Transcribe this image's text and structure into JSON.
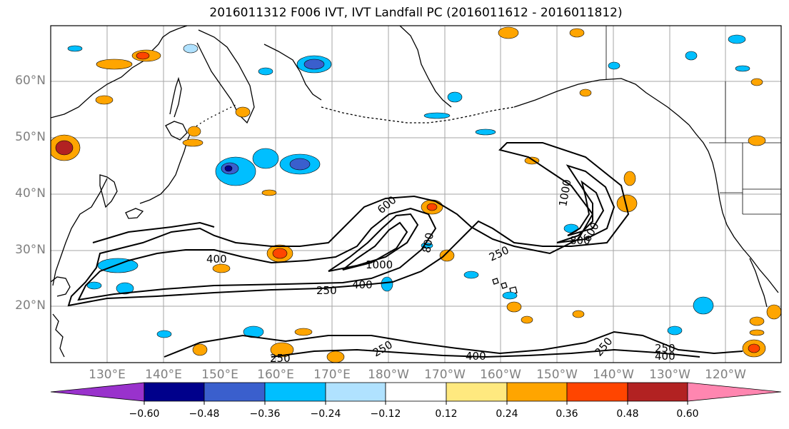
{
  "title": "2016011312 F006 IVT, IVT Landfall PC (2016011612 - 2016011812)",
  "lat_labels": [
    "60°N",
    "50°N",
    "40°N",
    "30°N",
    "20°N"
  ],
  "lon_labels": [
    "130°E",
    "140°E",
    "150°E",
    "160°E",
    "170°E",
    "180°W",
    "170°W",
    "160°W",
    "150°W",
    "140°W",
    "130°W",
    "120°W"
  ],
  "colorbar": {
    "ticks": [
      "−0.60",
      "−0.48",
      "−0.36",
      "−0.24",
      "−0.12",
      "0.12",
      "0.24",
      "0.36",
      "0.48",
      "0.60"
    ],
    "colors": [
      "#9932CC",
      "#00008B",
      "#3A5FCD",
      "#00BFFF",
      "#B0E2FF",
      "#FFFFFF",
      "#FFE97F",
      "#FFA500",
      "#FF4500",
      "#B22222",
      "#FF86B0"
    ]
  },
  "contour_labels": [
    "400",
    "250",
    "400",
    "1000",
    "600",
    "800",
    "250",
    "800",
    "600",
    "1000",
    "250",
    "250",
    "400",
    "250",
    "250",
    "400"
  ]
}
